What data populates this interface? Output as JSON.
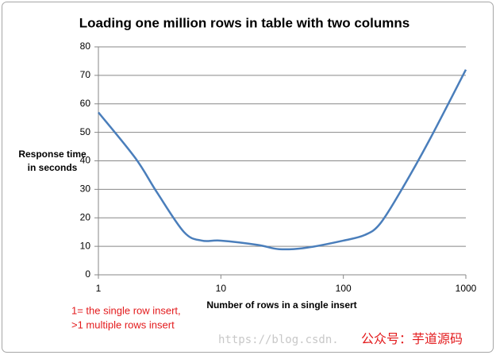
{
  "chart_data": {
    "type": "line",
    "title": "Loading one million rows in table with two columns",
    "y_label": [
      "Response time",
      "in seconds"
    ],
    "x_label": "Number of rows in a single insert",
    "annotations": [
      "1= the single row  insert,",
      ">1 multiple rows insert"
    ],
    "watermark": [
      "https://blog.csdn.",
      "公众号：芋道源码"
    ],
    "x": [
      1,
      2,
      3,
      5,
      7,
      10,
      20,
      30,
      50,
      100,
      150,
      200,
      300,
      500,
      1000
    ],
    "series": [
      {
        "color": "#4a7ebb",
        "values": [
          57,
          41,
          29,
          15,
          12,
          12,
          10.5,
          9,
          9.5,
          12,
          14,
          18,
          30,
          47,
          72
        ]
      }
    ],
    "xlim": [
      1,
      1000
    ],
    "xticks": [
      1,
      10,
      100,
      1000
    ],
    "x_scale": "log",
    "ylim": [
      0,
      80
    ],
    "yticks": [
      0,
      10,
      20,
      30,
      40,
      50,
      60,
      70,
      80
    ],
    "grid": true
  }
}
